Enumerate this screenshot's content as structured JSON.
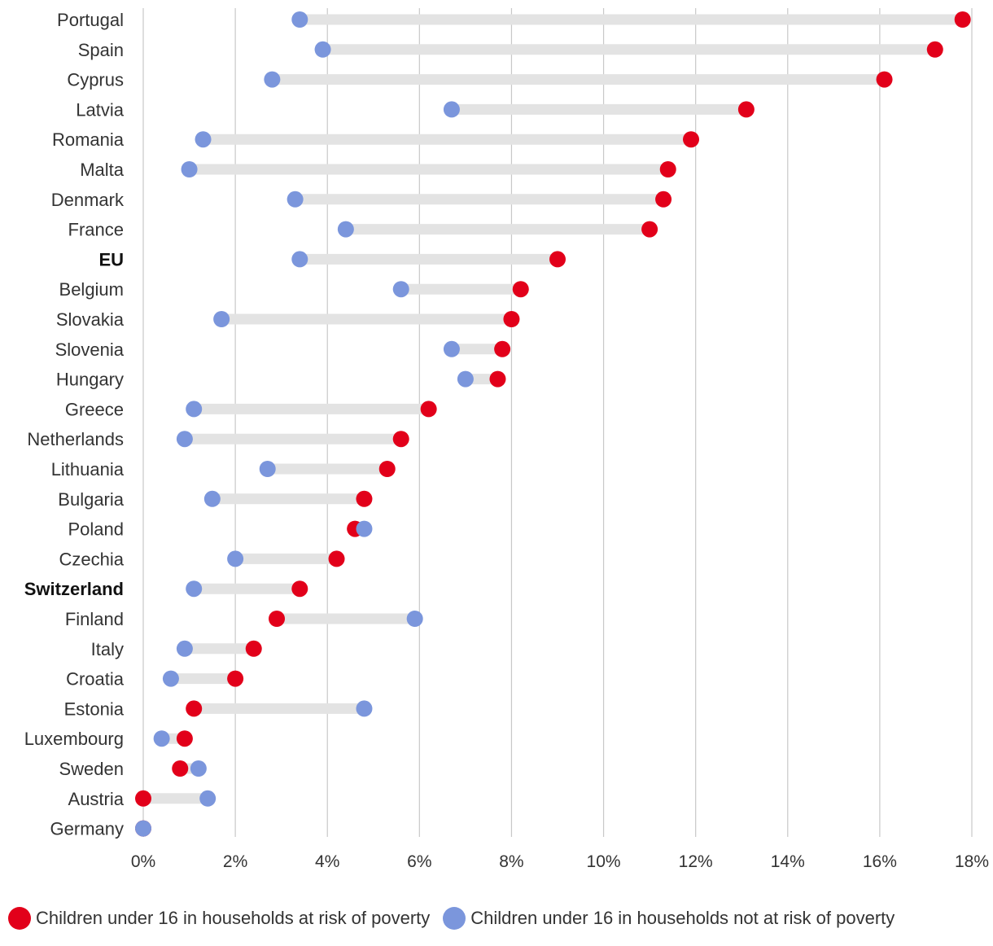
{
  "chart_data": {
    "type": "dumbbell",
    "title": "",
    "xlabel": "",
    "ylabel": "",
    "xlim": [
      0,
      18
    ],
    "x_tick_step": 2,
    "x_tick_suffix": "%",
    "grid": "vertical",
    "legend_position": "bottom",
    "colors": {
      "at_risk": "#e2001a",
      "not_at_risk": "#7b96dc",
      "connector": "#e3e3e3",
      "grid": "#c8c8c8"
    },
    "series": [
      {
        "key": "at_risk",
        "name": "Children under 16 in households at risk of poverty"
      },
      {
        "key": "not_at_risk",
        "name": "Children under 16 in households not at risk of poverty"
      }
    ],
    "bold_categories": [
      "EU",
      "Switzerland"
    ],
    "categories": [
      "Portugal",
      "Spain",
      "Cyprus",
      "Latvia",
      "Romania",
      "Malta",
      "Denmark",
      "France",
      "EU",
      "Belgium",
      "Slovakia",
      "Slovenia",
      "Hungary",
      "Greece",
      "Netherlands",
      "Lithuania",
      "Bulgaria",
      "Poland",
      "Czechia",
      "Switzerland",
      "Finland",
      "Italy",
      "Croatia",
      "Estonia",
      "Luxembourg",
      "Sweden",
      "Austria",
      "Germany"
    ],
    "at_risk": [
      17.8,
      17.2,
      16.1,
      13.1,
      11.9,
      11.4,
      11.3,
      11.0,
      9.0,
      8.2,
      8.0,
      7.8,
      7.7,
      6.2,
      5.6,
      5.3,
      4.8,
      4.6,
      4.2,
      3.4,
      2.9,
      2.4,
      2.0,
      1.1,
      0.9,
      0.8,
      0.0,
      0.0
    ],
    "not_at_risk": [
      3.4,
      3.9,
      2.8,
      6.7,
      1.3,
      1.0,
      3.3,
      4.4,
      3.4,
      5.6,
      1.7,
      6.7,
      7.0,
      1.1,
      0.9,
      2.7,
      1.5,
      4.8,
      2.0,
      1.1,
      5.9,
      0.9,
      0.6,
      4.8,
      0.4,
      1.2,
      1.4,
      0.0
    ]
  }
}
